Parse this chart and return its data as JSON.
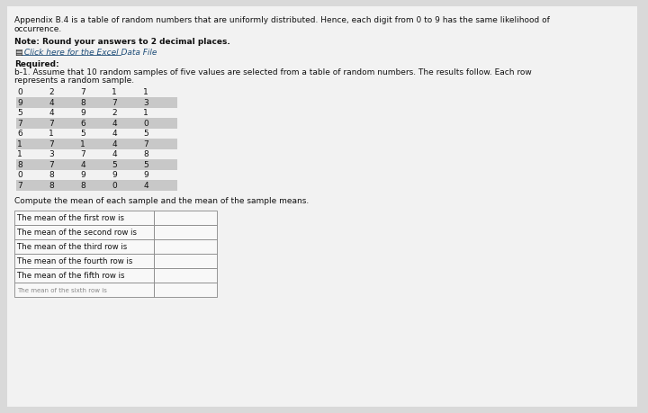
{
  "bg_color": "#d9d9d9",
  "content_bg": "#f0f0f0",
  "title_text1": "Appendix B.4 is a table of random numbers that are uniformly distributed. Hence, each digit from 0 to 9 has the same likelihood of",
  "title_text2": "occurrence.",
  "note_text": "Note: Round your answers to 2 decimal places.",
  "link_icon": "▤",
  "link_text": " Click here for the Excel Data File",
  "required_line1": "Required:",
  "required_line2": "b-1. Assume that 10 random samples of five values are selected from a table of random numbers. The results follow. Each row",
  "required_line3": "represents a random sample.",
  "table_data": [
    [
      0,
      2,
      7,
      1,
      1
    ],
    [
      9,
      4,
      8,
      7,
      3
    ],
    [
      5,
      4,
      9,
      2,
      1
    ],
    [
      7,
      7,
      6,
      4,
      0
    ],
    [
      6,
      1,
      5,
      4,
      5
    ],
    [
      1,
      7,
      1,
      4,
      7
    ],
    [
      1,
      3,
      7,
      4,
      8
    ],
    [
      8,
      7,
      4,
      5,
      5
    ],
    [
      0,
      8,
      9,
      9,
      9
    ],
    [
      7,
      8,
      8,
      0,
      4
    ]
  ],
  "compute_text": "Compute the mean of each sample and the mean of the sample means.",
  "answer_rows": [
    "The mean of the first row is",
    "The mean of the second row is",
    "The mean of the third row is",
    "The mean of the fourth row is",
    "The mean of the fifth row is",
    "The mean of the sixth row is"
  ],
  "font_size": 6.5,
  "content_color": "#111111",
  "link_color": "#1f4e79",
  "highlight_color": "#c8c8c8",
  "table_bg": "#e8e8e8",
  "ans_label_bg": "#f8f8f8",
  "ans_box_bg": "#f8f8f8",
  "border_color": "#888888"
}
